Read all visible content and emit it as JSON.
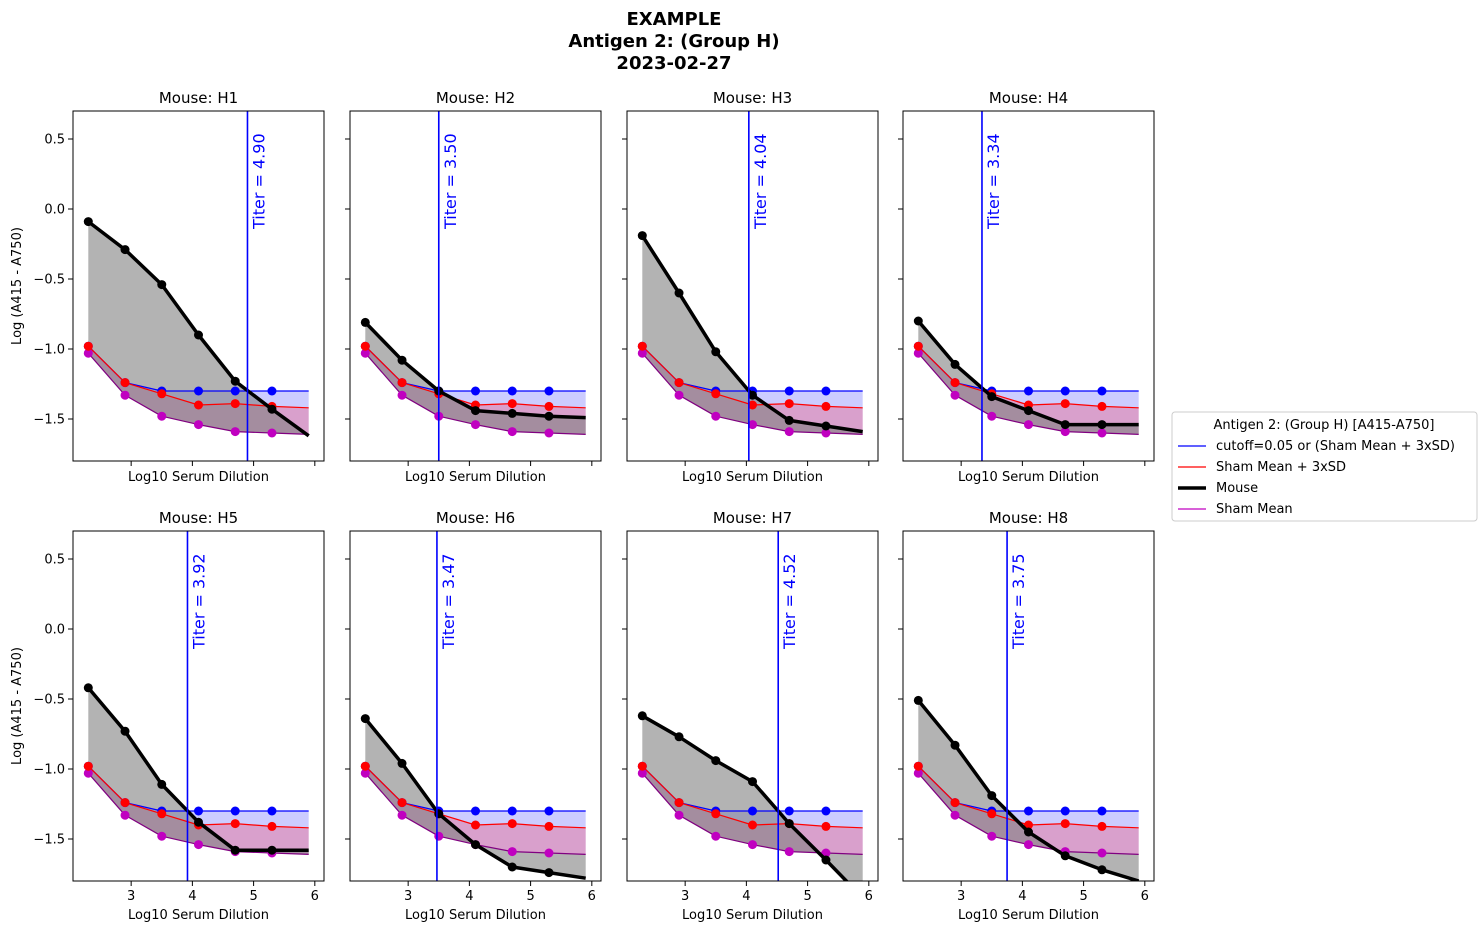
{
  "figure": {
    "title_lines": [
      "EXAMPLE",
      "Antigen 2: (Group H)",
      "2023-02-27"
    ]
  },
  "colors": {
    "cutoff": "#0000ff",
    "sham_sd": "#ff0000",
    "mouse": "#000000",
    "sham_mean": "#c000c0",
    "sham_mean_line": "#800080",
    "fill_cutoff": "#ccccff",
    "fill_sham": "#d9a0cc",
    "fill_mouse": "#808080"
  },
  "legend": {
    "title": "Antigen 2: (Group H) [A415-A750]",
    "entries": [
      {
        "label": "cutoff=0.05 or (Sham Mean + 3xSD)",
        "series": "cutoff"
      },
      {
        "label": "Sham Mean + 3xSD",
        "series": "sham_sd"
      },
      {
        "label": "Mouse",
        "series": "mouse"
      },
      {
        "label": "Sham Mean",
        "series": "sham_mean"
      }
    ]
  },
  "chart_data": {
    "type": "line",
    "xlabel": "Log10 Serum Dilution",
    "ylabel": "Log (A415 - A750)",
    "xlim": [
      2.05,
      6.15
    ],
    "ylim": [
      -1.8,
      0.7
    ],
    "xticks": [
      3,
      4,
      5,
      6
    ],
    "yticks": [
      0.5,
      0.0,
      -0.5,
      -1.0,
      -1.5
    ],
    "ytick_labels": [
      "0.5",
      "0.0",
      "−0.5",
      "−1.0",
      "−1.5"
    ],
    "xtick_labels": [
      "3",
      "4",
      "5",
      "6"
    ],
    "titer_label_prefix": "Titer = ",
    "shared": {
      "cutoff": {
        "x": [
          2.3,
          2.9,
          3.5,
          4.1,
          4.7,
          5.3,
          5.9
        ],
        "y": [
          -0.98,
          -1.24,
          -1.3,
          -1.3,
          -1.3,
          -1.3,
          -1.3
        ],
        "markers_x": [
          2.3,
          2.9,
          3.5,
          4.1,
          4.7,
          5.3
        ]
      },
      "sham_sd": {
        "x": [
          2.3,
          2.9,
          3.5,
          4.1,
          4.7,
          5.3,
          5.9
        ],
        "y": [
          -0.98,
          -1.24,
          -1.32,
          -1.4,
          -1.39,
          -1.41,
          -1.42
        ],
        "markers_x": [
          2.3,
          2.9,
          3.5,
          4.1,
          4.7,
          5.3
        ]
      },
      "sham_mean": {
        "x": [
          2.3,
          2.9,
          3.5,
          4.1,
          4.7,
          5.3,
          5.9
        ],
        "y": [
          -1.03,
          -1.33,
          -1.48,
          -1.54,
          -1.59,
          -1.6,
          -1.61
        ],
        "markers_x": [
          2.3,
          2.9,
          3.5,
          4.1,
          4.7,
          5.3
        ]
      }
    },
    "panels": [
      {
        "title": "Mouse: H1",
        "titer": 4.9,
        "titer_text": "4.90",
        "mouse": {
          "x": [
            2.3,
            2.9,
            3.5,
            4.1,
            4.7,
            5.3,
            5.9
          ],
          "y": [
            -0.09,
            -0.29,
            -0.54,
            -0.9,
            -1.23,
            -1.43,
            -1.62
          ]
        },
        "show_xticks": false,
        "show_yticks": true,
        "show_ylabel": true
      },
      {
        "title": "Mouse: H2",
        "titer": 3.5,
        "titer_text": "3.50",
        "mouse": {
          "x": [
            2.3,
            2.9,
            3.5,
            4.1,
            4.7,
            5.3,
            5.9
          ],
          "y": [
            -0.81,
            -1.08,
            -1.3,
            -1.44,
            -1.46,
            -1.48,
            -1.49
          ]
        },
        "show_xticks": false,
        "show_yticks": false,
        "show_ylabel": false
      },
      {
        "title": "Mouse: H3",
        "titer": 4.04,
        "titer_text": "4.04",
        "mouse": {
          "x": [
            2.3,
            2.9,
            3.5,
            4.1,
            4.7,
            5.3,
            5.9
          ],
          "y": [
            -0.19,
            -0.6,
            -1.02,
            -1.33,
            -1.51,
            -1.55,
            -1.59
          ]
        },
        "show_xticks": false,
        "show_yticks": false,
        "show_ylabel": false
      },
      {
        "title": "Mouse: H4",
        "titer": 3.34,
        "titer_text": "3.34",
        "mouse": {
          "x": [
            2.3,
            2.9,
            3.5,
            4.1,
            4.7,
            5.3,
            5.9
          ],
          "y": [
            -0.8,
            -1.11,
            -1.34,
            -1.44,
            -1.54,
            -1.54,
            -1.54
          ]
        },
        "show_xticks": false,
        "show_yticks": false,
        "show_ylabel": false
      },
      {
        "title": "Mouse: H5",
        "titer": 3.92,
        "titer_text": "3.92",
        "mouse": {
          "x": [
            2.3,
            2.9,
            3.5,
            4.1,
            4.7,
            5.3,
            5.9
          ],
          "y": [
            -0.42,
            -0.73,
            -1.11,
            -1.38,
            -1.58,
            -1.58,
            -1.58
          ]
        },
        "show_xticks": true,
        "show_yticks": true,
        "show_ylabel": true
      },
      {
        "title": "Mouse: H6",
        "titer": 3.47,
        "titer_text": "3.47",
        "mouse": {
          "x": [
            2.3,
            2.9,
            3.5,
            4.1,
            4.7,
            5.3,
            5.9
          ],
          "y": [
            -0.64,
            -0.96,
            -1.32,
            -1.54,
            -1.7,
            -1.74,
            -1.78
          ]
        },
        "show_xticks": true,
        "show_yticks": false,
        "show_ylabel": false
      },
      {
        "title": "Mouse: H7",
        "titer": 4.52,
        "titer_text": "4.52",
        "mouse": {
          "x": [
            2.3,
            2.9,
            3.5,
            4.1,
            4.7,
            5.3,
            5.9
          ],
          "y": [
            -0.62,
            -0.77,
            -0.94,
            -1.09,
            -1.39,
            -1.65,
            -1.92
          ]
        },
        "show_xticks": true,
        "show_yticks": false,
        "show_ylabel": false
      },
      {
        "title": "Mouse: H8",
        "titer": 3.75,
        "titer_text": "3.75",
        "mouse": {
          "x": [
            2.3,
            2.9,
            3.5,
            4.1,
            4.7,
            5.3,
            5.9
          ],
          "y": [
            -0.51,
            -0.83,
            -1.19,
            -1.45,
            -1.62,
            -1.72,
            -1.8
          ]
        },
        "show_xticks": true,
        "show_yticks": false,
        "show_ylabel": false
      }
    ]
  }
}
